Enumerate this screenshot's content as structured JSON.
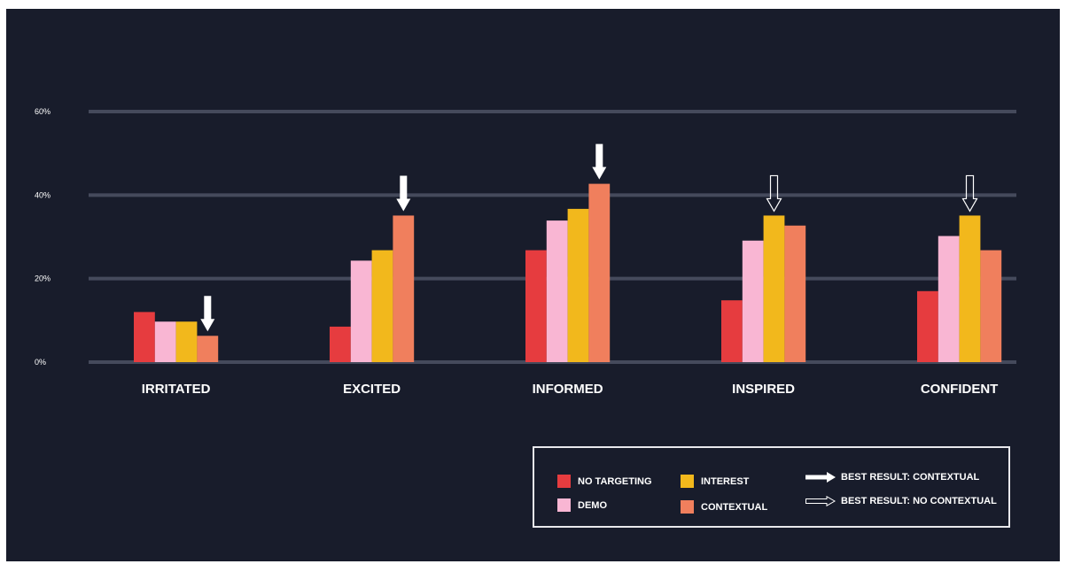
{
  "chart_data": {
    "type": "bar",
    "categories": [
      "IRRITATED",
      "EXCITED",
      "INFORMED",
      "INSPIRED",
      "CONFIDENT"
    ],
    "series": [
      {
        "name": "NO TARGETING",
        "color": "#e63c3f",
        "values": [
          12,
          8.5,
          26.8,
          14.8,
          17
        ]
      },
      {
        "name": "DEMO",
        "color": "#f9b6d3",
        "values": [
          9.7,
          24.3,
          33.9,
          29.1,
          30.2
        ]
      },
      {
        "name": "INTEREST",
        "color": "#f2b81c",
        "values": [
          9.7,
          26.8,
          36.7,
          35.1,
          35.1
        ]
      },
      {
        "name": "CONTEXTUAL",
        "color": "#f07f5d",
        "values": [
          6.3,
          35.1,
          42.7,
          32.7,
          26.8
        ]
      }
    ],
    "y_ticks": [
      "0%",
      "20%",
      "40%",
      "60%"
    ],
    "ylim": [
      0,
      60
    ],
    "grid": true,
    "best_result_arrows": [
      {
        "category": "IRRITATED",
        "series": "CONTEXTUAL",
        "style": "filled"
      },
      {
        "category": "EXCITED",
        "series": "CONTEXTUAL",
        "style": "filled"
      },
      {
        "category": "INFORMED",
        "series": "CONTEXTUAL",
        "style": "filled"
      },
      {
        "category": "INSPIRED",
        "series": "INTEREST",
        "style": "outline"
      },
      {
        "category": "CONFIDENT",
        "series": "INTEREST",
        "style": "outline"
      }
    ],
    "legend_placement": "bottom-right"
  },
  "legend": {
    "items": [
      {
        "label": "NO TARGETING",
        "color": "#e63c3f"
      },
      {
        "label": "DEMO",
        "color": "#f9b6d3"
      },
      {
        "label": "INTEREST",
        "color": "#f2b81c"
      },
      {
        "label": "CONTEXTUAL",
        "color": "#f07f5d"
      }
    ],
    "arrow_filled_label": "BEST RESULT: CONTEXTUAL",
    "arrow_outline_label": "BEST RESULT: NO CONTEXTUAL"
  },
  "colors": {
    "background": "#181c2b",
    "gridline": "#454a5c",
    "text": "#ffffff"
  }
}
